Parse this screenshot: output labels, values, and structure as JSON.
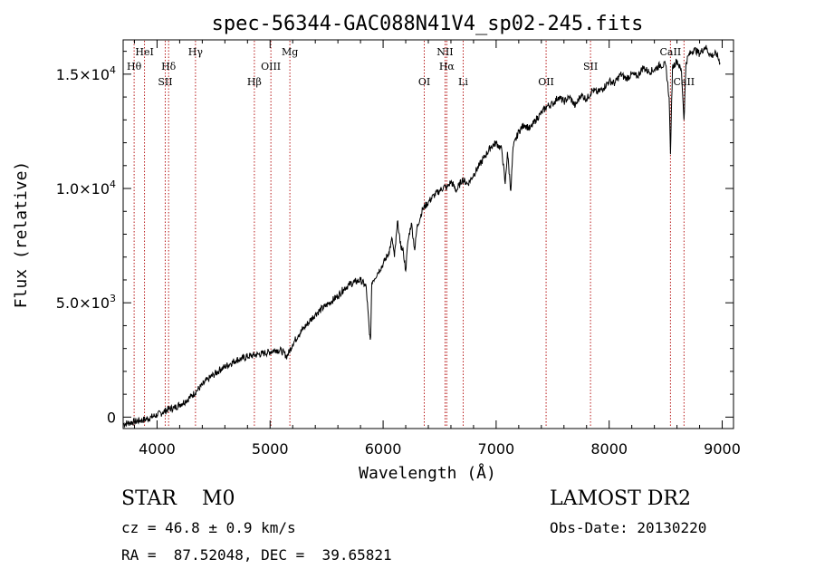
{
  "chart_data": {
    "type": "line",
    "title": "spec-56344-GAC088N41V4_sp02-245.fits",
    "xlabel": "Wavelength (Å)",
    "ylabel": "Flux (relative)",
    "xlim": [
      3700,
      9100
    ],
    "ylim": [
      -500,
      16500
    ],
    "xticks": [
      {
        "value": 4000,
        "label": "4000"
      },
      {
        "value": 5000,
        "label": "5000"
      },
      {
        "value": 6000,
        "label": "6000"
      },
      {
        "value": 7000,
        "label": "7000"
      },
      {
        "value": 8000,
        "label": "8000"
      },
      {
        "value": 9000,
        "label": "9000"
      }
    ],
    "yticks": [
      {
        "value": 0,
        "mant": "0",
        "exp": ""
      },
      {
        "value": 5000,
        "mant": "5.0×10",
        "exp": "3"
      },
      {
        "value": 10000,
        "mant": "1.0×10",
        "exp": "4"
      },
      {
        "value": 15000,
        "mant": "1.5×10",
        "exp": "4"
      }
    ],
    "line_color": "#000000",
    "marker_color": "#b00000",
    "series": [
      {
        "x": [
          3700,
          3750,
          3800,
          3850,
          3900,
          3950,
          4000,
          4050,
          4100,
          4150,
          4200,
          4250,
          4300,
          4350,
          4400,
          4450,
          4500,
          4550,
          4600,
          4650,
          4700,
          4750,
          4800,
          4850,
          4900,
          4950,
          5000,
          5050,
          5100,
          5150,
          5200,
          5250,
          5300,
          5350,
          5400,
          5450,
          5500,
          5550,
          5600,
          5650,
          5700,
          5750,
          5800,
          5850,
          5880,
          5890,
          5900,
          5950,
          6000,
          6050,
          6080,
          6100,
          6130,
          6150,
          6180,
          6200,
          6220,
          6250,
          6280,
          6300,
          6350,
          6400,
          6450,
          6500,
          6550,
          6563,
          6600,
          6650,
          6700,
          6750,
          6800,
          6850,
          6900,
          6950,
          7000,
          7050,
          7080,
          7100,
          7130,
          7150,
          7200,
          7250,
          7300,
          7350,
          7400,
          7450,
          7500,
          7550,
          7600,
          7650,
          7700,
          7750,
          7800,
          7850,
          7900,
          7950,
          8000,
          8050,
          8100,
          8150,
          8200,
          8250,
          8300,
          8350,
          8400,
          8450,
          8500,
          8530,
          8542,
          8560,
          8600,
          8640,
          8662,
          8680,
          8700,
          8750,
          8800,
          8850,
          8900,
          8950,
          8980
        ],
        "y": [
          -300,
          -250,
          -200,
          -150,
          -100,
          0,
          100,
          200,
          350,
          400,
          550,
          700,
          900,
          1150,
          1400,
          1650,
          1850,
          2050,
          2200,
          2350,
          2500,
          2550,
          2650,
          2700,
          2750,
          2800,
          2850,
          2950,
          2900,
          2650,
          3200,
          3600,
          3900,
          4200,
          4500,
          4700,
          4900,
          5100,
          5300,
          5600,
          5800,
          5900,
          6000,
          5700,
          3600,
          3500,
          5900,
          6300,
          6700,
          7200,
          7800,
          7000,
          8600,
          7600,
          7200,
          6400,
          7700,
          8500,
          7300,
          8300,
          9100,
          9400,
          9700,
          9900,
          10100,
          10000,
          10300,
          9900,
          10400,
          10200,
          10600,
          11000,
          11400,
          11800,
          12000,
          11700,
          10200,
          11600,
          9900,
          11800,
          12500,
          12800,
          12600,
          13000,
          13300,
          13600,
          13700,
          14000,
          13800,
          14000,
          13600,
          14100,
          13900,
          14300,
          14200,
          14400,
          14700,
          14600,
          15000,
          14800,
          15000,
          14900,
          15300,
          15100,
          15200,
          15400,
          15400,
          14000,
          11500,
          15300,
          15600,
          15100,
          13000,
          15500,
          15800,
          16100,
          15900,
          16200,
          15800,
          15900,
          15500
        ]
      }
    ],
    "lines": [
      {
        "wl": 3797,
        "label": "Hθ",
        "row": 2
      },
      {
        "wl": 3889,
        "label": "HeI",
        "row": 1
      },
      {
        "wl": 4072,
        "label": "SII",
        "row": 3
      },
      {
        "wl": 4102,
        "label": "Hδ",
        "row": 2
      },
      {
        "wl": 4340,
        "label": "Hγ",
        "row": 1
      },
      {
        "wl": 4861,
        "label": "Hβ",
        "row": 3
      },
      {
        "wl": 5007,
        "label": "OIII",
        "row": 2
      },
      {
        "wl": 5175,
        "label": "Mg",
        "row": 1
      },
      {
        "wl": 6364,
        "label": "OI",
        "row": 3
      },
      {
        "wl": 6548,
        "label": "NII",
        "row": 1
      },
      {
        "wl": 6563,
        "label": "Hα",
        "row": 2
      },
      {
        "wl": 6708,
        "label": "Li",
        "row": 3
      },
      {
        "wl": 7442,
        "label": "OII",
        "row": 3
      },
      {
        "wl": 7835,
        "label": "SII",
        "row": 2
      },
      {
        "wl": 8542,
        "label": "CaII",
        "row": 1
      },
      {
        "wl": 8662,
        "label": "CaII",
        "row": 3
      }
    ]
  },
  "info": {
    "class_text": "STAR    M0",
    "survey_text": "LAMOST DR2",
    "cz_text": "cz = 46.8 ± 0.9 km/s",
    "obs_date_text": "Obs-Date: 20130220",
    "radec_text": "RA =  87.52048, DEC =  39.65821"
  }
}
